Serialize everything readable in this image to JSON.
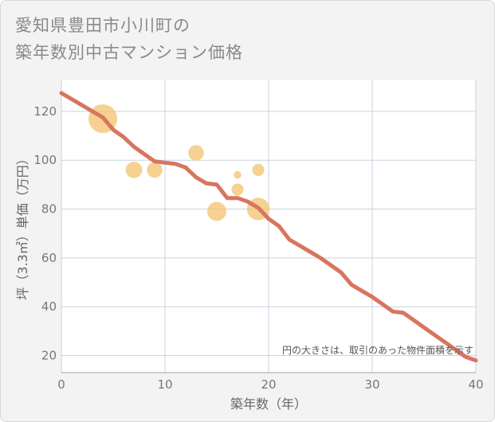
{
  "title_line1": "愛知県豊田市小川町の",
  "title_line2": "築年数別中古マンション価格",
  "chart_data": {
    "type": "scatter+line",
    "xlabel": "築年数（年）",
    "ylabel": "坪（3.3㎡）単価（万円）",
    "xlim": [
      0,
      40
    ],
    "ylim": [
      13,
      133
    ],
    "xticks": [
      0,
      10,
      20,
      30,
      40
    ],
    "yticks": [
      20,
      40,
      60,
      80,
      100,
      120
    ],
    "grid": true,
    "note": "円の大きさは、取引のあった物件面積を示す",
    "colors": {
      "line": "#d87560",
      "bubble": "#f3c26e",
      "plot_bg": "#ffffff"
    },
    "bubbles": [
      {
        "x": 4,
        "y": 117,
        "size": 3
      },
      {
        "x": 7,
        "y": 96,
        "size": 1.6
      },
      {
        "x": 9,
        "y": 96,
        "size": 1.5
      },
      {
        "x": 13,
        "y": 103,
        "size": 1.5
      },
      {
        "x": 15,
        "y": 79,
        "size": 1.9
      },
      {
        "x": 17,
        "y": 94,
        "size": 0.6
      },
      {
        "x": 17,
        "y": 88,
        "size": 1.1
      },
      {
        "x": 19,
        "y": 96,
        "size": 1.1
      },
      {
        "x": 19,
        "y": 80,
        "size": 2.3
      }
    ],
    "line": [
      [
        0,
        127.5
      ],
      [
        1,
        125
      ],
      [
        2,
        122.5
      ],
      [
        3,
        120
      ],
      [
        4,
        117.5
      ],
      [
        5,
        112.5
      ],
      [
        6,
        109.5
      ],
      [
        7,
        105.5
      ],
      [
        8,
        102.5
      ],
      [
        9,
        99.5
      ],
      [
        10,
        99
      ],
      [
        11,
        98.5
      ],
      [
        12,
        97
      ],
      [
        13,
        93
      ],
      [
        14,
        90.5
      ],
      [
        15,
        90
      ],
      [
        16,
        84.5
      ],
      [
        17,
        84.5
      ],
      [
        18,
        83
      ],
      [
        19,
        80.5
      ],
      [
        20,
        76
      ],
      [
        21,
        73
      ],
      [
        22,
        67.5
      ],
      [
        23,
        65
      ],
      [
        24,
        62.5
      ],
      [
        25,
        60
      ],
      [
        26,
        57
      ],
      [
        27,
        54
      ],
      [
        28,
        49
      ],
      [
        29,
        46.5
      ],
      [
        30,
        44
      ],
      [
        31,
        41
      ],
      [
        32,
        38
      ],
      [
        33,
        37.5
      ],
      [
        34,
        34.5
      ],
      [
        35,
        31.5
      ],
      [
        36,
        28.5
      ],
      [
        37,
        25.5
      ],
      [
        38,
        22.5
      ],
      [
        39,
        19.5
      ],
      [
        40,
        18
      ]
    ]
  }
}
